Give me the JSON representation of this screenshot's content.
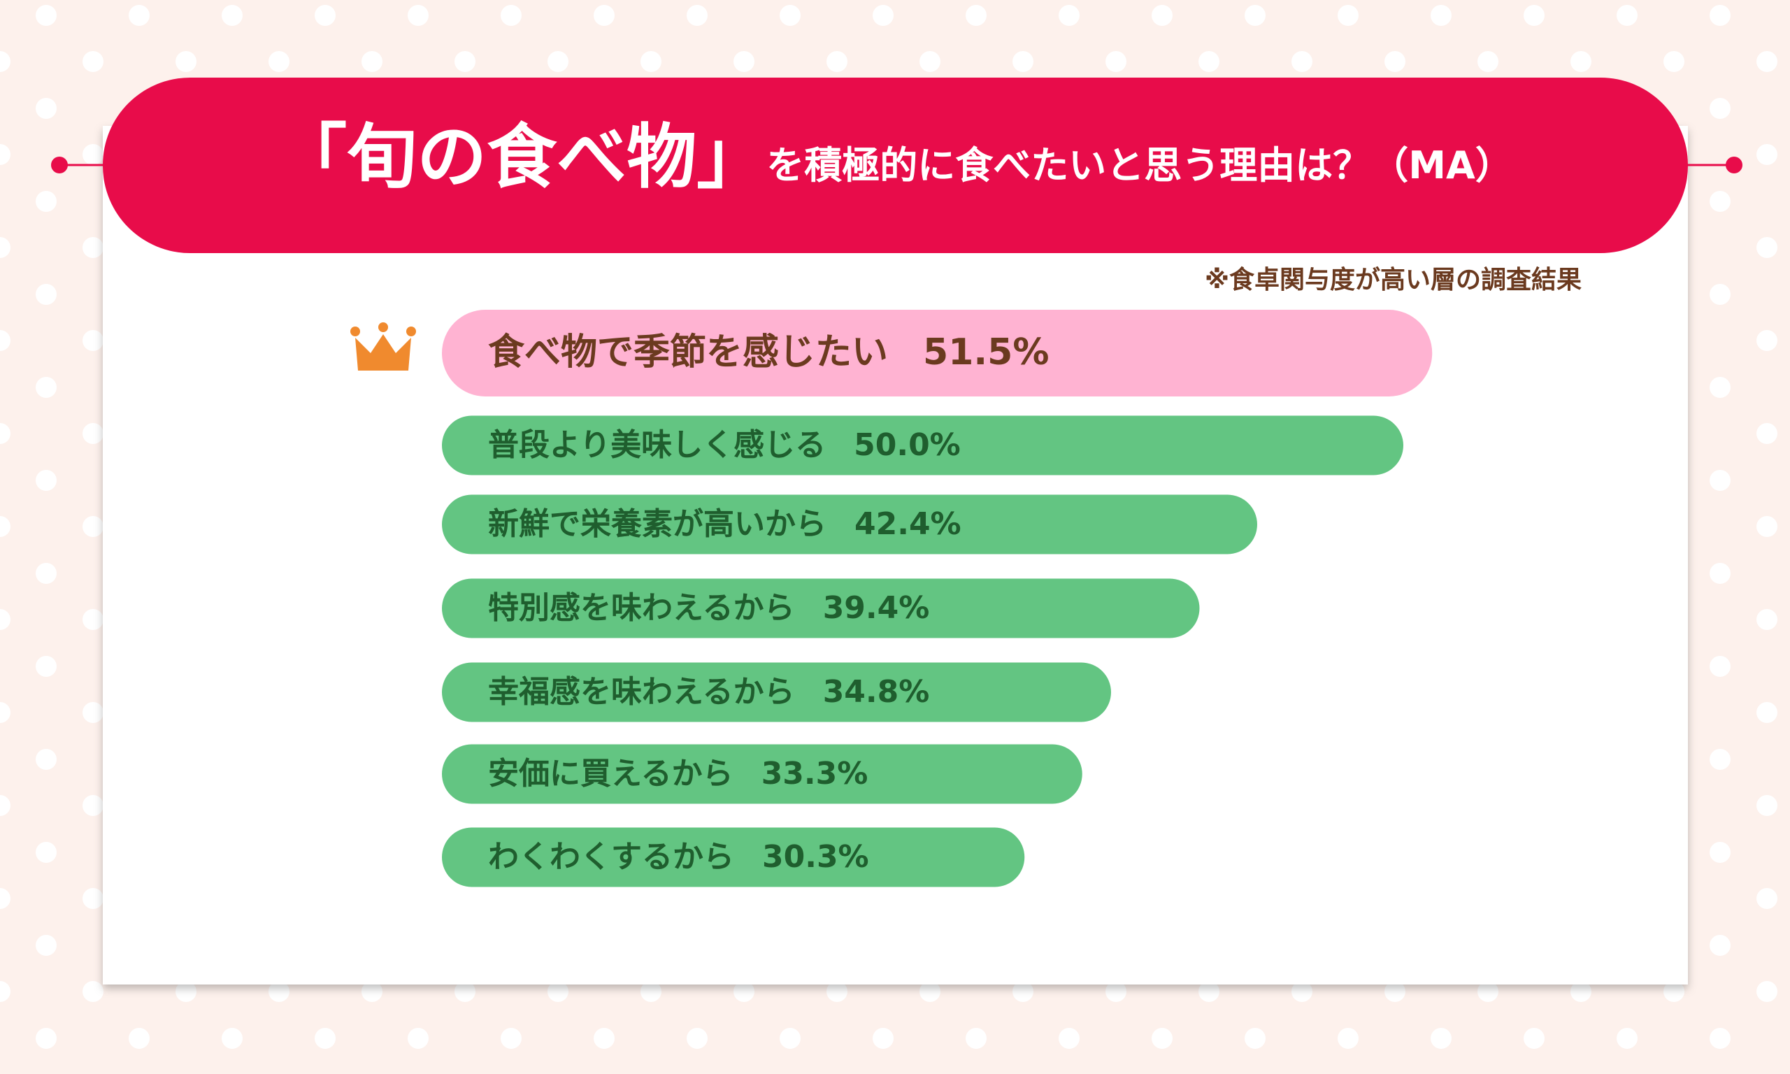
{
  "chart_data": {
    "type": "bar",
    "orientation": "horizontal",
    "title": "「旬の食べ物」",
    "subtitle": "を積極的に食べたいと思う理由は？（MA）",
    "note": "※食卓関与度が高い層の調査結果",
    "categories": [
      "食べ物で季節を感じたい",
      "普段より美味しく感じる",
      "新鮮で栄養素が高いから",
      "特別感を味わえるから",
      "幸福感を味わえるから",
      "安価に買えるから",
      "わくわくするから"
    ],
    "values": [
      51.5,
      50.0,
      42.4,
      39.4,
      34.8,
      33.3,
      30.3
    ],
    "value_labels": [
      "51.5%",
      "50.0%",
      "42.4%",
      "39.4%",
      "34.8%",
      "33.3%",
      "30.3%"
    ],
    "colors": [
      "#ffb3d2",
      "#63c582",
      "#63c582",
      "#63c582",
      "#63c582",
      "#63c582",
      "#63c582"
    ]
  }
}
